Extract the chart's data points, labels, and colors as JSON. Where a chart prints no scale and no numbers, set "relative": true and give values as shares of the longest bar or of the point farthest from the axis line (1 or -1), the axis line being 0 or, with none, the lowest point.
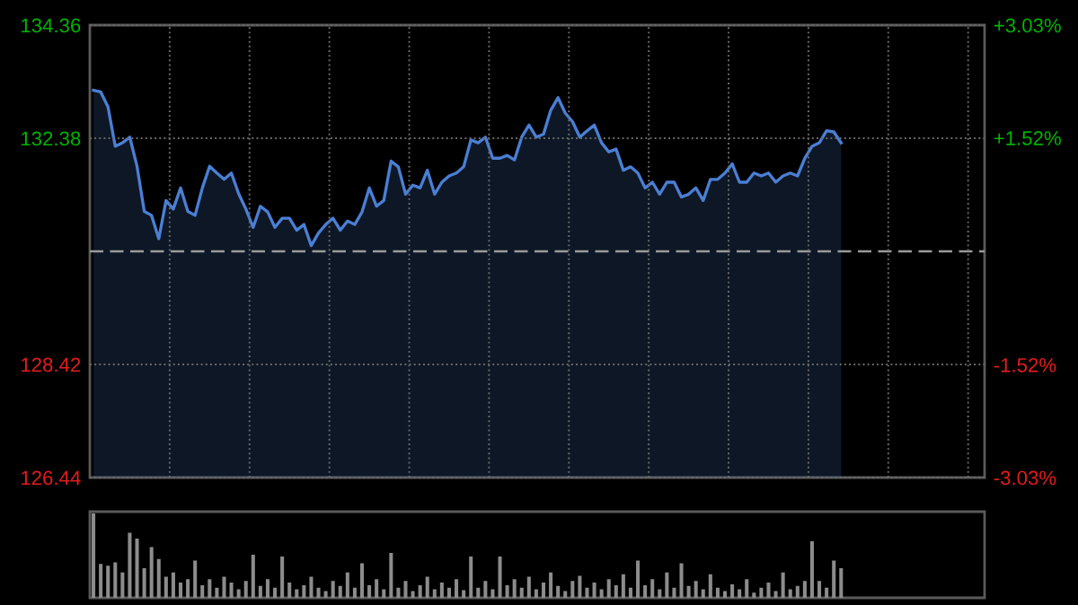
{
  "chart_data": [
    {
      "type": "area",
      "categories": [
        null,
        null,
        null,
        null,
        null,
        null,
        null,
        null,
        null,
        null,
        null,
        null,
        null,
        null,
        null,
        null,
        null,
        null,
        null,
        null,
        null,
        null,
        null,
        null,
        null,
        null,
        null,
        null,
        null,
        null,
        null,
        null,
        null,
        null,
        null,
        null,
        null,
        null,
        null,
        null,
        null,
        null,
        null,
        null,
        null,
        null,
        null,
        null,
        null,
        null,
        null,
        null,
        null,
        null,
        null,
        null,
        null,
        null,
        null,
        null,
        null,
        null,
        null,
        null,
        null,
        null,
        null,
        null,
        null,
        null,
        null,
        null,
        null,
        null,
        null,
        null,
        null,
        null,
        null,
        null,
        null,
        null,
        null,
        null,
        null,
        null,
        null,
        null,
        null,
        null,
        null,
        null,
        null,
        null,
        null,
        null,
        null,
        null,
        null,
        null,
        null,
        null,
        null,
        null
      ],
      "series": [
        {
          "color": "#4a7fd4",
          "values": [
            133.22,
            133.19,
            132.93,
            132.24,
            132.3,
            132.4,
            131.89,
            131.1,
            131.03,
            130.62,
            131.29,
            131.14,
            131.51,
            131.1,
            131.03,
            131.51,
            131.89,
            131.77,
            131.66,
            131.77,
            131.41,
            131.14,
            130.82,
            131.19,
            131.09,
            130.82,
            130.98,
            130.98,
            130.77,
            130.87,
            130.5,
            130.72,
            130.87,
            130.98,
            130.77,
            130.93,
            130.87,
            131.09,
            131.51,
            131.19,
            131.29,
            131.98,
            131.88,
            131.4,
            131.56,
            131.51,
            131.82,
            131.4,
            131.61,
            131.72,
            131.77,
            131.88,
            132.35,
            132.3,
            132.4,
            132.03,
            132.03,
            132.08,
            132.0,
            132.4,
            132.61,
            132.4,
            132.45,
            132.87,
            133.09,
            132.82,
            132.67,
            132.4,
            132.51,
            132.61,
            132.3,
            132.14,
            132.19,
            131.82,
            131.88,
            131.77,
            131.51,
            131.61,
            131.4,
            131.61,
            131.61,
            131.35,
            131.4,
            131.51,
            131.29,
            131.66,
            131.66,
            131.77,
            131.93,
            131.61,
            131.61,
            131.77,
            131.72,
            131.77,
            131.61,
            131.72,
            131.77,
            131.72,
            132.03,
            132.24,
            132.3,
            132.51,
            132.49,
            132.3
          ]
        }
      ],
      "ylim": [
        126.44,
        134.36
      ],
      "yticks": [
        126.44,
        128.42,
        132.38,
        134.36
      ],
      "y2lim": [
        -3.03,
        3.03
      ],
      "y2ticks": [
        {
          "value": -3.03,
          "label": "-3.03%"
        },
        {
          "value": -1.52,
          "label": "-1.52%"
        },
        {
          "value": 1.52,
          "label": "+1.52%"
        },
        {
          "value": 3.03,
          "label": "+3.03%"
        }
      ],
      "ref_lines": [
        {
          "axis": "y",
          "value": 130.4,
          "color": "#9a9a9a",
          "line_style": "dashed"
        }
      ],
      "grid": true
    },
    {
      "type": "bar",
      "relative": true,
      "color": "#8c8c8c",
      "categories": [
        null,
        null,
        null,
        null,
        null,
        null,
        null,
        null,
        null,
        null,
        null,
        null,
        null,
        null,
        null,
        null,
        null,
        null,
        null,
        null,
        null,
        null,
        null,
        null,
        null,
        null,
        null,
        null,
        null,
        null,
        null,
        null,
        null,
        null,
        null,
        null,
        null,
        null,
        null,
        null,
        null,
        null,
        null,
        null,
        null,
        null,
        null,
        null,
        null,
        null,
        null,
        null,
        null,
        null,
        null,
        null,
        null,
        null,
        null,
        null,
        null,
        null,
        null,
        null,
        null,
        null,
        null,
        null,
        null,
        null,
        null,
        null,
        null,
        null,
        null,
        null,
        null,
        null,
        null,
        null,
        null,
        null,
        null,
        null,
        null,
        null,
        null,
        null,
        null,
        null,
        null,
        null,
        null,
        null,
        null,
        null,
        null,
        null,
        null,
        null,
        null,
        null,
        null,
        null
      ],
      "values": [
        1.0,
        0.4,
        0.38,
        0.42,
        0.3,
        0.77,
        0.7,
        0.35,
        0.6,
        0.46,
        0.25,
        0.3,
        0.18,
        0.22,
        0.44,
        0.15,
        0.22,
        0.12,
        0.25,
        0.18,
        0.1,
        0.2,
        0.51,
        0.14,
        0.22,
        0.12,
        0.49,
        0.18,
        0.1,
        0.15,
        0.25,
        0.12,
        0.08,
        0.2,
        0.14,
        0.3,
        0.12,
        0.41,
        0.15,
        0.22,
        0.1,
        0.53,
        0.12,
        0.2,
        0.08,
        0.15,
        0.25,
        0.1,
        0.18,
        0.12,
        0.22,
        0.09,
        0.49,
        0.12,
        0.2,
        0.1,
        0.49,
        0.15,
        0.22,
        0.12,
        0.25,
        0.1,
        0.18,
        0.3,
        0.14,
        0.08,
        0.2,
        0.26,
        0.12,
        0.18,
        0.1,
        0.22,
        0.15,
        0.28,
        0.12,
        0.44,
        0.15,
        0.22,
        0.1,
        0.3,
        0.12,
        0.41,
        0.14,
        0.2,
        0.1,
        0.28,
        0.12,
        0.08,
        0.16,
        0.1,
        0.22,
        0.06,
        0.12,
        0.18,
        0.08,
        0.3,
        0.1,
        0.14,
        0.2,
        0.67,
        0.2,
        0.12,
        0.44,
        0.35
      ]
    }
  ]
}
